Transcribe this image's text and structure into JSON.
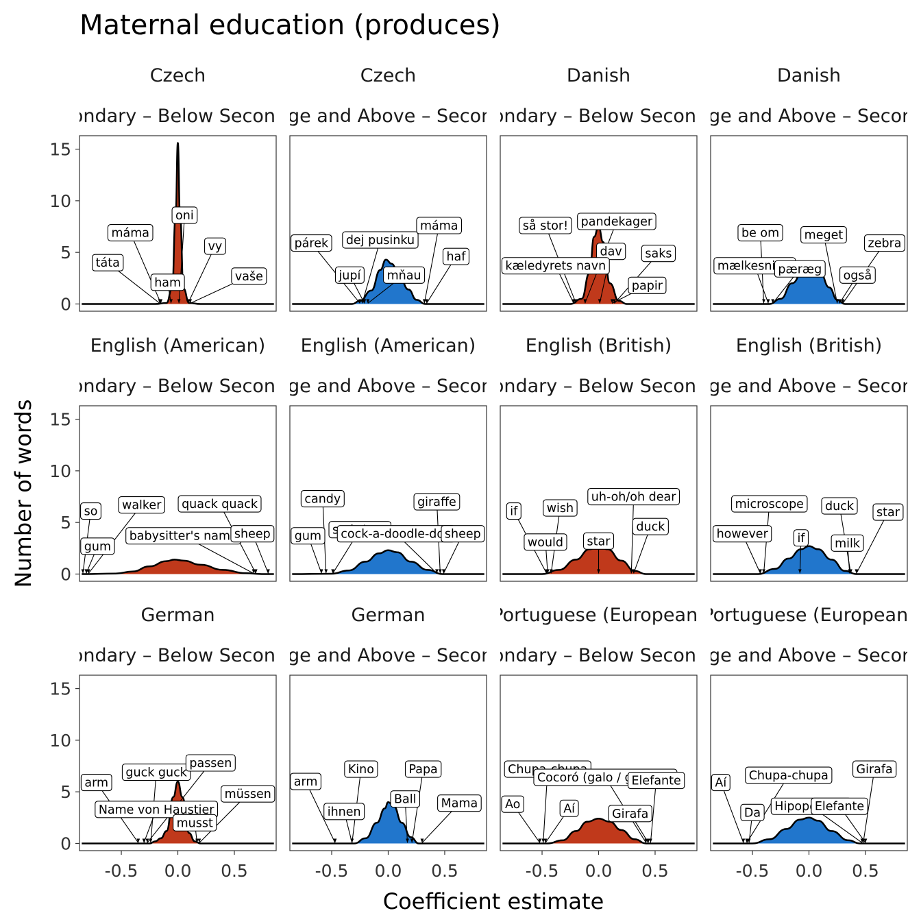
{
  "chart_data": {
    "type": "area",
    "title": "Maternal education (produces)",
    "xlabel": "Coefficient estimate",
    "ylabel": "Number of words",
    "xlim": [
      -0.87,
      0.87
    ],
    "ylim": [
      -0.7,
      16.3
    ],
    "x_ticks": [
      "-0.5",
      "0.0",
      "0.5"
    ],
    "x_tick_values": [
      -0.5,
      0,
      0.5
    ],
    "y_ticks": [
      "0",
      "5",
      "10",
      "15"
    ],
    "y_tick_values": [
      0,
      5,
      10,
      15
    ],
    "grid": false,
    "colors": {
      "Below Secondary": "#c0391b",
      "College and Above": "#2176cc"
    },
    "panels": [
      {
        "language": "Czech",
        "contrast": "Secondary – Below Secondary",
        "color": "#c0391b",
        "density": [
          [
            -0.85,
            0
          ],
          [
            -0.2,
            0
          ],
          [
            -0.1,
            0.1
          ],
          [
            -0.05,
            1.5
          ],
          [
            -0.02,
            8.5
          ],
          [
            0,
            15.6
          ],
          [
            0.02,
            8.5
          ],
          [
            0.05,
            1.5
          ],
          [
            0.1,
            0.1
          ],
          [
            0.2,
            0
          ],
          [
            0.85,
            0
          ]
        ],
        "words": [
          {
            "text": "máma",
            "x": -0.15,
            "lx": -0.42,
            "ly": 6.9
          },
          {
            "text": "táta",
            "x": -0.16,
            "lx": -0.62,
            "ly": 4.0
          },
          {
            "text": "oni",
            "x": 0.01,
            "lx": 0.06,
            "ly": 8.6
          },
          {
            "text": "ham",
            "x": -0.06,
            "lx": -0.09,
            "ly": 2.1
          },
          {
            "text": "vy",
            "x": 0.09,
            "lx": 0.33,
            "ly": 5.6
          },
          {
            "text": "vaše",
            "x": 0.11,
            "lx": 0.63,
            "ly": 2.7
          }
        ]
      },
      {
        "language": "Czech",
        "contrast": "College and Above – Secondary",
        "color": "#2176cc",
        "density": [
          [
            -0.85,
            0
          ],
          [
            -0.32,
            0
          ],
          [
            -0.25,
            0.3
          ],
          [
            -0.15,
            1.3
          ],
          [
            -0.07,
            3.3
          ],
          [
            -0.02,
            4.3
          ],
          [
            0.03,
            3.9
          ],
          [
            0.1,
            2.6
          ],
          [
            0.18,
            1.4
          ],
          [
            0.25,
            0.4
          ],
          [
            0.33,
            0
          ],
          [
            0.85,
            0
          ]
        ],
        "words": [
          {
            "text": "párek",
            "x": -0.25,
            "lx": -0.68,
            "ly": 5.9
          },
          {
            "text": "dej pusinku",
            "x": -0.23,
            "lx": -0.07,
            "ly": 6.2
          },
          {
            "text": "máma",
            "x": 0.32,
            "lx": 0.45,
            "ly": 7.6
          },
          {
            "text": "haf",
            "x": 0.34,
            "lx": 0.6,
            "ly": 4.6
          },
          {
            "text": "jupí",
            "x": -0.21,
            "lx": -0.34,
            "ly": 2.8
          },
          {
            "text": "mňau",
            "x": -0.18,
            "lx": 0.14,
            "ly": 2.8
          }
        ]
      },
      {
        "language": "Danish",
        "contrast": "Secondary – Below Secondary",
        "color": "#c0391b",
        "density": [
          [
            -0.85,
            0
          ],
          [
            -0.25,
            0
          ],
          [
            -0.15,
            0.5
          ],
          [
            -0.08,
            3.0
          ],
          [
            -0.04,
            6.5
          ],
          [
            0.0,
            7.5
          ],
          [
            0.04,
            6.0
          ],
          [
            0.1,
            2.0
          ],
          [
            0.18,
            0.3
          ],
          [
            0.25,
            0
          ],
          [
            0.85,
            0
          ]
        ],
        "words": [
          {
            "text": "så stor!",
            "x": -0.2,
            "lx": -0.47,
            "ly": 7.6
          },
          {
            "text": "pandekager",
            "x": -0.12,
            "lx": 0.16,
            "ly": 8.0
          },
          {
            "text": "dav",
            "x": 0.01,
            "lx": 0.11,
            "ly": 5.1
          },
          {
            "text": "saks",
            "x": 0.14,
            "lx": 0.53,
            "ly": 4.9
          },
          {
            "text": "kæledyrets navn",
            "x": -0.22,
            "lx": -0.38,
            "ly": 3.7
          },
          {
            "text": "papir",
            "x": 0.12,
            "lx": 0.43,
            "ly": 1.8
          }
        ]
      },
      {
        "language": "Danish",
        "contrast": "College and Above – Secondary",
        "color": "#2176cc",
        "density": [
          [
            -0.85,
            0
          ],
          [
            -0.35,
            0
          ],
          [
            -0.25,
            0.5
          ],
          [
            -0.15,
            2.0
          ],
          [
            -0.05,
            3.2
          ],
          [
            0.03,
            3.5
          ],
          [
            0.1,
            3.0
          ],
          [
            0.18,
            1.6
          ],
          [
            0.25,
            0.4
          ],
          [
            0.32,
            0
          ],
          [
            0.85,
            0
          ]
        ],
        "words": [
          {
            "text": "be om",
            "x": -0.4,
            "lx": -0.43,
            "ly": 6.9
          },
          {
            "text": "meget",
            "x": 0.25,
            "lx": 0.13,
            "ly": 6.7
          },
          {
            "text": "zebra",
            "x": 0.3,
            "lx": 0.67,
            "ly": 5.9
          },
          {
            "text": "mælkesnitte",
            "x": -0.36,
            "lx": -0.48,
            "ly": 3.7
          },
          {
            "text": "pæræg",
            "x": -0.32,
            "lx": -0.08,
            "ly": 3.4
          },
          {
            "text": "også",
            "x": 0.27,
            "lx": 0.43,
            "ly": 2.8
          }
        ]
      },
      {
        "language": "English (American)",
        "contrast": "Secondary – Below Secondary",
        "color": "#c0391b",
        "density": [
          [
            -0.85,
            0
          ],
          [
            -0.55,
            0.05
          ],
          [
            -0.4,
            0.25
          ],
          [
            -0.25,
            0.75
          ],
          [
            -0.1,
            1.25
          ],
          [
            -0.03,
            1.4
          ],
          [
            0.05,
            1.3
          ],
          [
            0.2,
            0.9
          ],
          [
            0.4,
            0.4
          ],
          [
            0.6,
            0.08
          ],
          [
            0.75,
            0
          ],
          [
            0.85,
            0
          ]
        ],
        "words": [
          {
            "text": "so",
            "x": -0.84,
            "lx": -0.77,
            "ly": 6.1
          },
          {
            "text": "walker",
            "x": -0.79,
            "lx": -0.32,
            "ly": 6.7
          },
          {
            "text": "quack quack",
            "x": 0.69,
            "lx": 0.37,
            "ly": 6.8
          },
          {
            "text": "gum",
            "x": -0.81,
            "lx": -0.71,
            "ly": 2.7
          },
          {
            "text": "babysitter's name",
            "x": 0.67,
            "lx": 0.05,
            "ly": 3.7
          },
          {
            "text": "sheep",
            "x": 0.8,
            "lx": 0.66,
            "ly": 3.9
          }
        ]
      },
      {
        "language": "English (American)",
        "contrast": "College and Above – Secondary",
        "color": "#2176cc",
        "density": [
          [
            -0.85,
            0
          ],
          [
            -0.5,
            0.03
          ],
          [
            -0.35,
            0.35
          ],
          [
            -0.2,
            1.2
          ],
          [
            -0.08,
            2.0
          ],
          [
            0.0,
            2.3
          ],
          [
            0.08,
            2.1
          ],
          [
            0.2,
            1.2
          ],
          [
            0.35,
            0.4
          ],
          [
            0.48,
            0
          ],
          [
            0.85,
            0
          ]
        ],
        "words": [
          {
            "text": "candy",
            "x": -0.55,
            "lx": -0.58,
            "ly": 7.3
          },
          {
            "text": "giraffe",
            "x": 0.46,
            "lx": 0.43,
            "ly": 7.0
          },
          {
            "text": "gum",
            "x": -0.59,
            "lx": -0.71,
            "ly": 3.7
          },
          {
            "text": "soda/pop",
            "x": -0.49,
            "lx": -0.25,
            "ly": 4.3
          },
          {
            "text": "cock-a-doodle-doo",
            "x": 0.43,
            "lx": 0.07,
            "ly": 3.9
          },
          {
            "text": "sheep",
            "x": 0.49,
            "lx": 0.66,
            "ly": 3.9
          }
        ]
      },
      {
        "language": "English (British)",
        "contrast": "Secondary – Below Secondary",
        "color": "#c0391b",
        "density": [
          [
            -0.85,
            0
          ],
          [
            -0.5,
            0
          ],
          [
            -0.35,
            0.4
          ],
          [
            -0.2,
            1.4
          ],
          [
            -0.08,
            2.4
          ],
          [
            0.0,
            2.7
          ],
          [
            0.08,
            2.4
          ],
          [
            0.2,
            1.3
          ],
          [
            0.32,
            0.3
          ],
          [
            0.42,
            0
          ],
          [
            0.85,
            0
          ]
        ],
        "words": [
          {
            "text": "if",
            "x": -0.46,
            "lx": -0.75,
            "ly": 6.1
          },
          {
            "text": "wish",
            "x": -0.42,
            "lx": -0.34,
            "ly": 6.4
          },
          {
            "text": "uh-oh/oh dear",
            "x": 0.29,
            "lx": 0.31,
            "ly": 7.5
          },
          {
            "text": "would",
            "x": -0.45,
            "lx": -0.47,
            "ly": 3.1
          },
          {
            "text": "star",
            "x": 0.0,
            "lx": 0.0,
            "ly": 3.2
          },
          {
            "text": "duck",
            "x": 0.31,
            "lx": 0.46,
            "ly": 4.6
          }
        ]
      },
      {
        "language": "English (British)",
        "contrast": "College and Above – Secondary",
        "color": "#2176cc",
        "density": [
          [
            -0.85,
            0
          ],
          [
            -0.45,
            0
          ],
          [
            -0.3,
            0.5
          ],
          [
            -0.18,
            1.5
          ],
          [
            -0.07,
            2.4
          ],
          [
            0.0,
            2.7
          ],
          [
            0.08,
            2.4
          ],
          [
            0.2,
            1.4
          ],
          [
            0.32,
            0.3
          ],
          [
            0.42,
            0
          ],
          [
            0.85,
            0
          ]
        ],
        "words": [
          {
            "text": "microscope",
            "x": -0.4,
            "lx": -0.35,
            "ly": 6.8
          },
          {
            "text": "duck",
            "x": 0.37,
            "lx": 0.27,
            "ly": 6.6
          },
          {
            "text": "star",
            "x": 0.42,
            "lx": 0.7,
            "ly": 6.0
          },
          {
            "text": "however",
            "x": -0.43,
            "lx": -0.59,
            "ly": 3.9
          },
          {
            "text": "if",
            "x": -0.08,
            "lx": -0.07,
            "ly": 3.5
          },
          {
            "text": "milk",
            "x": 0.36,
            "lx": 0.34,
            "ly": 3.0
          }
        ]
      },
      {
        "language": "German",
        "contrast": "Secondary – Below Secondary",
        "color": "#c0391b",
        "density": [
          [
            -0.85,
            0
          ],
          [
            -0.25,
            0
          ],
          [
            -0.2,
            0.2
          ],
          [
            -0.15,
            0.5
          ],
          [
            -0.1,
            1.2
          ],
          [
            -0.04,
            4.5
          ],
          [
            0,
            6.0
          ],
          [
            0.04,
            4.5
          ],
          [
            0.1,
            1.0
          ],
          [
            0.15,
            0.2
          ],
          [
            0.2,
            0
          ],
          [
            0.85,
            0
          ]
        ],
        "words": [
          {
            "text": "arm",
            "x": -0.35,
            "lx": -0.72,
            "ly": 5.9
          },
          {
            "text": "guck guck",
            "x": -0.24,
            "lx": -0.19,
            "ly": 6.9
          },
          {
            "text": "passen",
            "x": -0.27,
            "lx": 0.29,
            "ly": 7.8
          },
          {
            "text": "müssen",
            "x": 0.19,
            "lx": 0.62,
            "ly": 4.8
          },
          {
            "text": "Name von Haustier",
            "x": -0.3,
            "lx": -0.19,
            "ly": 3.3
          },
          {
            "text": "musst",
            "x": 0.17,
            "lx": 0.15,
            "ly": 2.0
          }
        ]
      },
      {
        "language": "German",
        "contrast": "College and Above – Secondary",
        "color": "#2176cc",
        "density": [
          [
            -0.85,
            0
          ],
          [
            -0.3,
            0
          ],
          [
            -0.2,
            0.5
          ],
          [
            -0.1,
            2.0
          ],
          [
            -0.03,
            3.4
          ],
          [
            0.0,
            4.0
          ],
          [
            0.05,
            3.6
          ],
          [
            0.12,
            2.0
          ],
          [
            0.2,
            0.6
          ],
          [
            0.27,
            0
          ],
          [
            0.85,
            0
          ]
        ],
        "words": [
          {
            "text": "arm",
            "x": -0.47,
            "lx": -0.73,
            "ly": 6.0
          },
          {
            "text": "Kino",
            "x": -0.32,
            "lx": -0.24,
            "ly": 7.2
          },
          {
            "text": "Papa",
            "x": 0.21,
            "lx": 0.31,
            "ly": 7.2
          },
          {
            "text": "Mama",
            "x": 0.3,
            "lx": 0.63,
            "ly": 3.9
          },
          {
            "text": "ihnen",
            "x": -0.32,
            "lx": -0.39,
            "ly": 3.1
          },
          {
            "text": "Ball",
            "x": 0.17,
            "lx": 0.15,
            "ly": 4.3
          }
        ]
      },
      {
        "language": "Portuguese (European)",
        "contrast": "Secondary – Below Secondary",
        "color": "#c0391b",
        "density": [
          [
            -0.85,
            0
          ],
          [
            -0.45,
            0
          ],
          [
            -0.32,
            0.3
          ],
          [
            -0.2,
            1.2
          ],
          [
            -0.1,
            2.1
          ],
          [
            0.0,
            2.4
          ],
          [
            0.1,
            2.1
          ],
          [
            0.2,
            1.3
          ],
          [
            0.32,
            0.4
          ],
          [
            0.42,
            0
          ],
          [
            0.85,
            0
          ]
        ],
        "words": [
          {
            "text": "Chupa-chupa",
            "x": -0.49,
            "lx": -0.45,
            "ly": 7.2
          },
          {
            "text": "Cocoró (galo / galinha)",
            "x": 0.42,
            "lx": 0.06,
            "ly": 6.4
          },
          {
            "text": "Elefante",
            "x": 0.46,
            "lx": 0.51,
            "ly": 6.1
          },
          {
            "text": "Ao",
            "x": -0.52,
            "lx": -0.76,
            "ly": 3.8
          },
          {
            "text": "Aí",
            "x": -0.47,
            "lx": -0.26,
            "ly": 3.4
          },
          {
            "text": "Girafa",
            "x": 0.44,
            "lx": 0.28,
            "ly": 2.9
          }
        ]
      },
      {
        "language": "Portuguese (European)",
        "contrast": "College and Above – Secondary",
        "color": "#2176cc",
        "density": [
          [
            -0.85,
            0
          ],
          [
            -0.5,
            0
          ],
          [
            -0.35,
            0.4
          ],
          [
            -0.2,
            1.4
          ],
          [
            -0.08,
            2.3
          ],
          [
            0.0,
            2.5
          ],
          [
            0.08,
            2.2
          ],
          [
            0.2,
            1.2
          ],
          [
            0.35,
            0.3
          ],
          [
            0.45,
            0
          ],
          [
            0.85,
            0
          ]
        ],
        "words": [
          {
            "text": "Aí",
            "x": -0.58,
            "lx": -0.78,
            "ly": 5.9
          },
          {
            "text": "Chupa-chupa",
            "x": -0.55,
            "lx": -0.18,
            "ly": 6.6
          },
          {
            "text": "Girafa",
            "x": 0.48,
            "lx": 0.58,
            "ly": 7.2
          },
          {
            "text": "Da",
            "x": -0.53,
            "lx": -0.5,
            "ly": 3.0
          },
          {
            "text": "Hipopótamo",
            "x": 0.47,
            "lx": 0.02,
            "ly": 3.6
          },
          {
            "text": "Elefante",
            "x": 0.5,
            "lx": 0.27,
            "ly": 3.6
          }
        ]
      }
    ]
  }
}
